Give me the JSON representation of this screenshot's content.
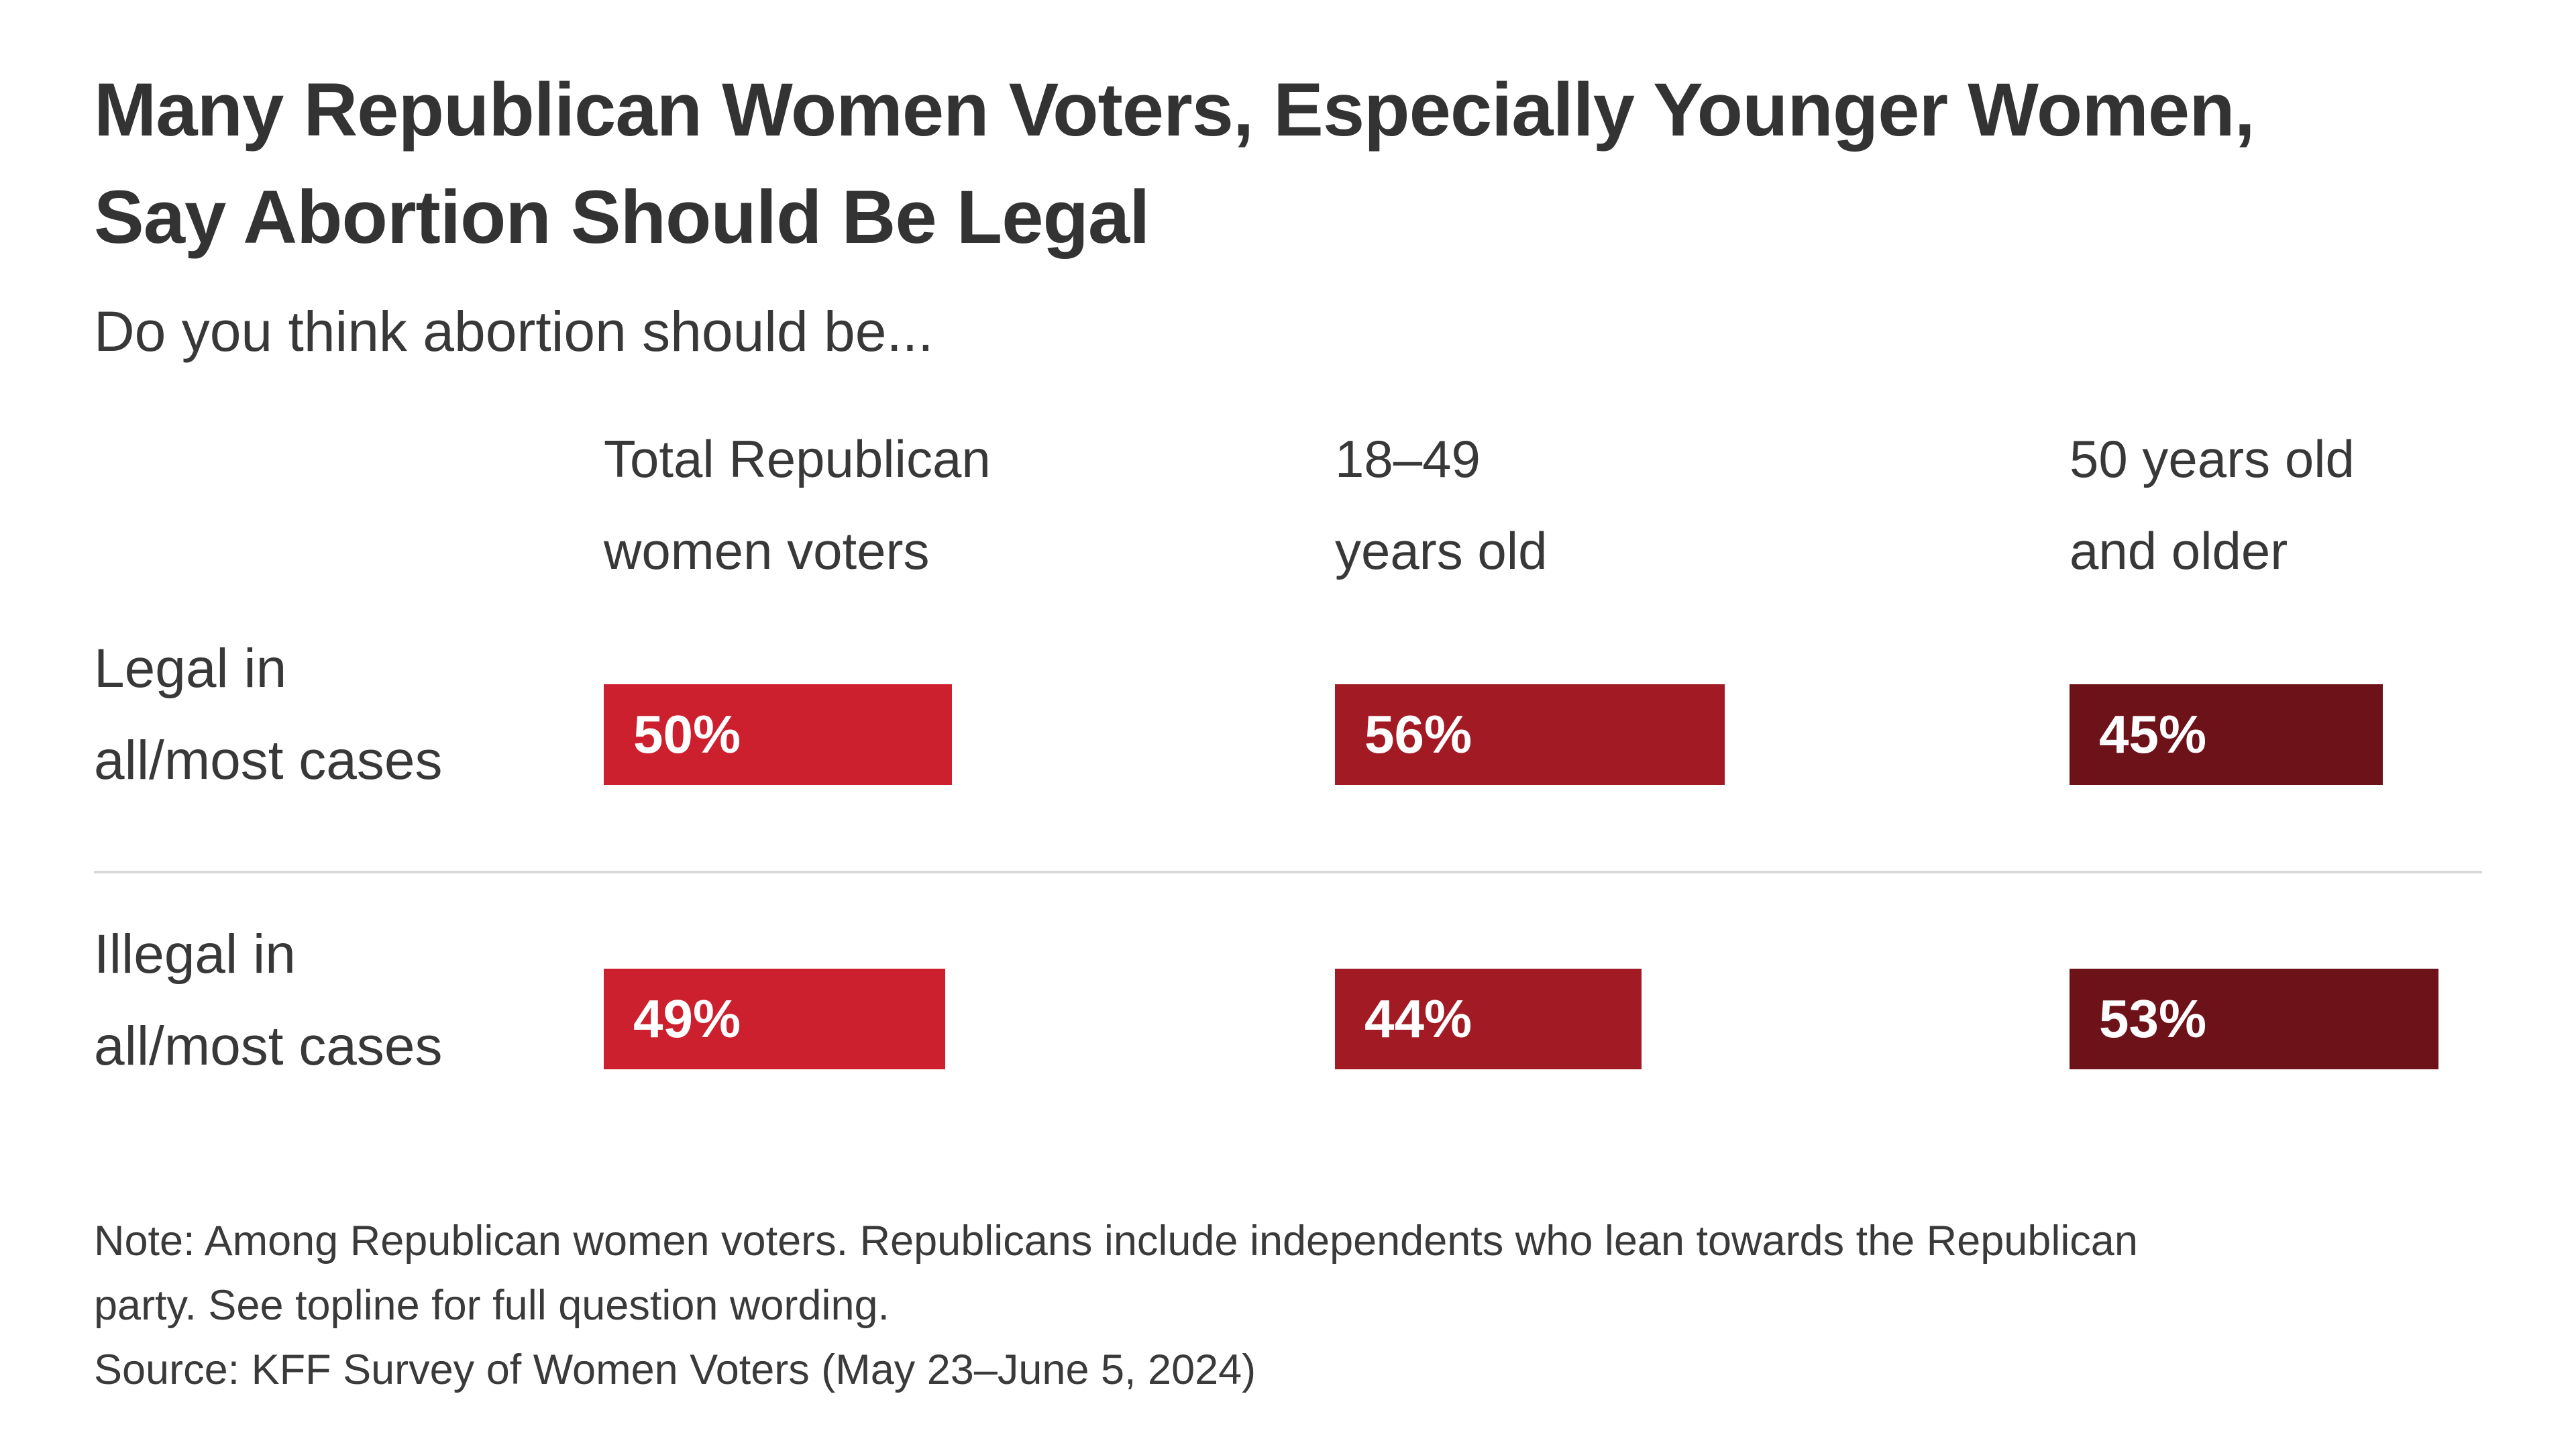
{
  "title": {
    "line1": "Many Republican Women Voters, Especially Younger Women,",
    "line2": "Say Abortion Should Be Legal"
  },
  "subtitle": "Do you think abortion should be...",
  "columns": [
    {
      "line1": "Total Republican",
      "line2": "women voters"
    },
    {
      "line1": "18–49",
      "line2": "years old"
    },
    {
      "line1": "50 years old",
      "line2": "and older"
    }
  ],
  "row_labels": [
    {
      "line1": "Legal in",
      "line2": "all/most cases"
    },
    {
      "line1": "Illegal in",
      "line2": "all/most cases"
    }
  ],
  "note": {
    "line1": "Note: Among Republican women voters. Republicans include independents who lean towards the Republican",
    "line2": "party. See topline for full question wording."
  },
  "source": "Source: KFF Survey of Women Voters (May 23–June 5, 2024)",
  "chart_data": {
    "type": "bar",
    "orientation": "horizontal",
    "title": "Many Republican Women Voters, Especially Younger Women, Say Abortion Should Be Legal",
    "subtitle": "Do you think abortion should be...",
    "categories": [
      "Total Republican women voters",
      "18–49 years old",
      "50 years old and older"
    ],
    "series": [
      {
        "name": "Legal in all/most cases",
        "values": [
          50,
          56,
          45
        ],
        "labels": [
          "50%",
          "56%",
          "45%"
        ]
      },
      {
        "name": "Illegal in all/most cases",
        "values": [
          49,
          44,
          53
        ],
        "labels": [
          "49%",
          "44%",
          "53%"
        ]
      }
    ],
    "unit": "percent",
    "xlim": [
      0,
      100
    ],
    "grid": false,
    "legend": false,
    "value_label_position": "inside-left",
    "bar_colors_by_category": [
      "#CC202E",
      "#A21B24",
      "#6E1219"
    ],
    "text_color": "#333333",
    "divider_color": "#D9D9D9",
    "background_color": "#FFFFFF"
  }
}
